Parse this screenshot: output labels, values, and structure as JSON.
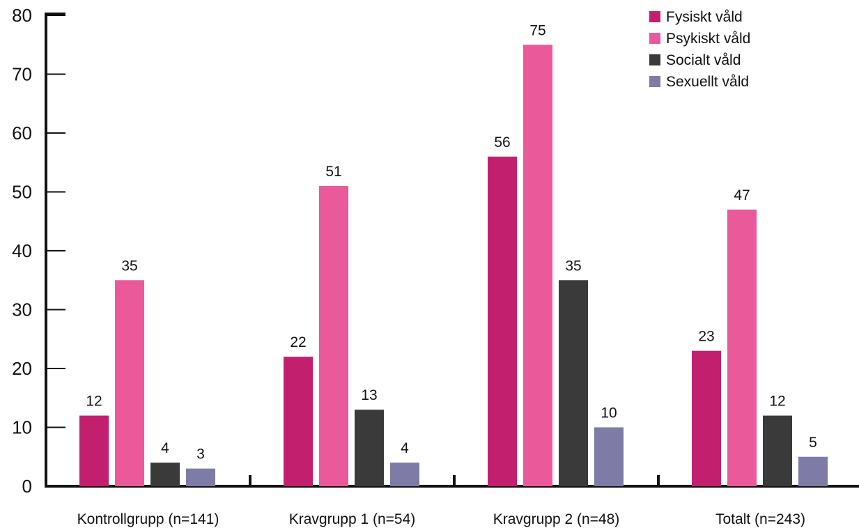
{
  "chart_data": {
    "type": "bar",
    "categories": [
      "Kontrollgrupp (n=141)",
      "Kravgrupp 1 (n=54)",
      "Kravgrupp 2 (n=48)",
      "Totalt (n=243)"
    ],
    "series": [
      {
        "name": "Fysiskt våld",
        "color": "#C2206F",
        "values": [
          12,
          22,
          56,
          23
        ]
      },
      {
        "name": "Psykiskt våld",
        "color": "#EA5A9A",
        "values": [
          35,
          51,
          75,
          47
        ]
      },
      {
        "name": "Socialt våld",
        "color": "#3A3A3A",
        "values": [
          4,
          13,
          35,
          12
        ]
      },
      {
        "name": "Sexuellt våld",
        "color": "#7E7CA6",
        "values": [
          3,
          4,
          10,
          5
        ]
      }
    ],
    "yticks": [
      "0",
      "10",
      "20",
      "30",
      "40",
      "50",
      "60",
      "70",
      "80"
    ],
    "ylim": [
      0,
      80
    ],
    "legend_position": "top-right",
    "grid": false
  }
}
